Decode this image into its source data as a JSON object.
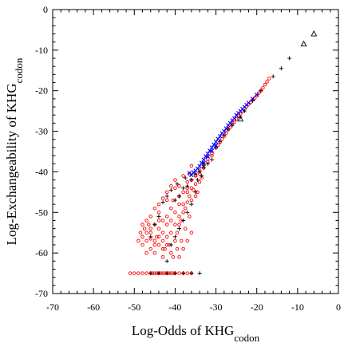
{
  "chart_data": {
    "type": "scatter",
    "xlabel": "Log-Odds of KHG",
    "xlabel_sub": "codon",
    "ylabel": "Log-Exchangeability of KHG",
    "ylabel_sub": "codon",
    "xlim": [
      -70,
      0
    ],
    "ylim": [
      -70,
      0
    ],
    "x_ticks": [
      -70,
      -60,
      -50,
      -40,
      -30,
      -20,
      -10,
      0
    ],
    "y_ticks": [
      0,
      -10,
      -20,
      -30,
      -40,
      -50,
      -60,
      -70
    ],
    "x_tick_labels": [
      "-70",
      "-60",
      "-50",
      "-40",
      "-30",
      "-20",
      "-10",
      "0"
    ],
    "y_tick_labels": [
      "0",
      "-10",
      "-20",
      "-30",
      "-40",
      "-50",
      "-60",
      "-70"
    ],
    "grid": false,
    "legend": "none",
    "series_styles": [
      {
        "marker": "circle",
        "color": "#ff0000"
      },
      {
        "marker": "plus",
        "color": "#000000"
      },
      {
        "marker": "x",
        "color": "#0000ff"
      },
      {
        "marker": "triangle",
        "color": "#000000"
      }
    ],
    "series": [
      {
        "marker": "circle",
        "points": [
          [
            -17,
            -17
          ],
          [
            -17.5,
            -17.8
          ],
          [
            -18,
            -18.5
          ],
          [
            -18.5,
            -19.3
          ],
          [
            -19,
            -20
          ],
          [
            -19.5,
            -20.6
          ],
          [
            -20,
            -21.2
          ],
          [
            -20.5,
            -21.8
          ],
          [
            -21,
            -22.2
          ],
          [
            -21.5,
            -22.8
          ],
          [
            -22,
            -23.3
          ],
          [
            -22.5,
            -23.9
          ],
          [
            -23,
            -24.5
          ],
          [
            -23.5,
            -25.1
          ],
          [
            -24,
            -25.8
          ],
          [
            -24.5,
            -26.3
          ],
          [
            -25,
            -27
          ],
          [
            -25.5,
            -27.7
          ],
          [
            -26,
            -28.3
          ],
          [
            -26.5,
            -29
          ],
          [
            -27,
            -29.6
          ],
          [
            -27.5,
            -30.4
          ],
          [
            -28,
            -31.2
          ],
          [
            -28.5,
            -31.9
          ],
          [
            -29,
            -32.7
          ],
          [
            -29.5,
            -33.4
          ],
          [
            -30,
            -34.1
          ],
          [
            -31,
            -35.5
          ],
          [
            -32,
            -36.8
          ],
          [
            -33,
            -38
          ],
          [
            -34,
            -39.6
          ],
          [
            -35,
            -40.9
          ],
          [
            -31,
            -36
          ],
          [
            -32,
            -37.5
          ],
          [
            -33,
            -39
          ],
          [
            -33.5,
            -41.5
          ],
          [
            -34,
            -42.5
          ],
          [
            -35,
            -43
          ],
          [
            -35.5,
            -44.5
          ],
          [
            -36,
            -42
          ],
          [
            -36.5,
            -46
          ],
          [
            -37,
            -44
          ],
          [
            -37,
            -47.5
          ],
          [
            -37.5,
            -49
          ],
          [
            -38,
            -45
          ],
          [
            -38,
            -50
          ],
          [
            -38.5,
            -52
          ],
          [
            -39,
            -46
          ],
          [
            -39,
            -48
          ],
          [
            -39,
            -53
          ],
          [
            -39.5,
            -55
          ],
          [
            -40,
            -44
          ],
          [
            -40,
            -50
          ],
          [
            -40,
            -57
          ],
          [
            -40.5,
            -47
          ],
          [
            -41,
            -52
          ],
          [
            -41,
            -55
          ],
          [
            -41.5,
            -58
          ],
          [
            -42,
            -47
          ],
          [
            -42,
            -51
          ],
          [
            -42,
            -56
          ],
          [
            -42.5,
            -59
          ],
          [
            -43,
            -52
          ],
          [
            -43,
            -55
          ],
          [
            -43,
            -61
          ],
          [
            -44,
            -50
          ],
          [
            -44,
            -54
          ],
          [
            -44,
            -58
          ],
          [
            -44.5,
            -56
          ],
          [
            -45,
            -53
          ],
          [
            -45,
            -57
          ],
          [
            -45,
            -60
          ],
          [
            -46,
            -55
          ],
          [
            -46,
            -59
          ],
          [
            -46.5,
            -53
          ],
          [
            -47,
            -57
          ],
          [
            -47,
            -60
          ],
          [
            -48,
            -58
          ],
          [
            -48.5,
            -55
          ],
          [
            -49,
            -57
          ],
          [
            -36,
            -47
          ],
          [
            -35,
            -46
          ],
          [
            -34.5,
            -45
          ],
          [
            -36.5,
            -51
          ],
          [
            -37.5,
            -54
          ],
          [
            -38.5,
            -57
          ],
          [
            -39.5,
            -59
          ],
          [
            -40.5,
            -61
          ],
          [
            -36,
            -38.5
          ],
          [
            -36.5,
            -40.5
          ],
          [
            -37,
            -42.5
          ],
          [
            -38,
            -41
          ],
          [
            -39,
            -43.5
          ],
          [
            -40,
            -42
          ],
          [
            -41,
            -43.5
          ],
          [
            -42,
            -45
          ],
          [
            -43,
            -46.5
          ],
          [
            -44,
            -48
          ],
          [
            -45,
            -49
          ],
          [
            -46,
            -51
          ],
          [
            -47,
            -52
          ],
          [
            -47.5,
            -54
          ],
          [
            -48,
            -56
          ],
          [
            -44,
            -52
          ],
          [
            -43,
            -57
          ],
          [
            -42,
            -53
          ],
          [
            -41,
            -49
          ],
          [
            -40,
            -53
          ],
          [
            -39,
            -51
          ],
          [
            -38,
            -48
          ],
          [
            -37,
            -45
          ],
          [
            -36,
            -44
          ],
          [
            -35,
            -41
          ],
          [
            -34,
            -40.5
          ],
          [
            -36,
            -55
          ],
          [
            -37,
            -57
          ],
          [
            -38,
            -59
          ],
          [
            -39,
            -61
          ],
          [
            -41,
            -60
          ],
          [
            -43,
            -59
          ],
          [
            -45,
            -58
          ],
          [
            -46,
            -56.5
          ],
          [
            -47,
            -55
          ],
          [
            -48,
            -53
          ],
          [
            -46,
            -54
          ],
          [
            -44,
            -56
          ],
          [
            -42,
            -58
          ],
          [
            -51,
            -65
          ],
          [
            -50,
            -65
          ],
          [
            -49,
            -65
          ],
          [
            -48,
            -65
          ],
          [
            -47,
            -65
          ],
          [
            -46,
            -65
          ],
          [
            -45.5,
            -65
          ],
          [
            -45,
            -65
          ],
          [
            -44.5,
            -65
          ],
          [
            -44,
            -65
          ],
          [
            -43.5,
            -65
          ],
          [
            -43,
            -65
          ],
          [
            -42.5,
            -65
          ],
          [
            -42,
            -65
          ],
          [
            -41.5,
            -65
          ],
          [
            -41,
            -65
          ],
          [
            -40.5,
            -65
          ],
          [
            -40,
            -65
          ],
          [
            -39,
            -65
          ],
          [
            -38,
            -65
          ],
          [
            -37,
            -65
          ],
          [
            -36,
            -65
          ]
        ]
      },
      {
        "marker": "plus",
        "points": [
          [
            -12,
            -12
          ],
          [
            -14,
            -14.5
          ],
          [
            -16,
            -16.5
          ],
          [
            -19,
            -20
          ],
          [
            -21,
            -22.5
          ],
          [
            -23,
            -25
          ],
          [
            -24,
            -26.5
          ],
          [
            -26,
            -28.5
          ],
          [
            -27,
            -29.5
          ],
          [
            -28,
            -31
          ],
          [
            -29,
            -32.5
          ],
          [
            -30,
            -34
          ],
          [
            -31,
            -37
          ],
          [
            -32,
            -38
          ],
          [
            -33,
            -39
          ],
          [
            -34,
            -40
          ],
          [
            -35,
            -40.5
          ],
          [
            -36,
            -42
          ],
          [
            -37,
            -43.5
          ],
          [
            -38,
            -44
          ],
          [
            -39,
            -46
          ],
          [
            -40,
            -47
          ],
          [
            -41,
            -44.5
          ],
          [
            -42,
            -46
          ],
          [
            -43,
            -47.5
          ],
          [
            -44,
            -51
          ],
          [
            -45,
            -53
          ],
          [
            -46,
            -56
          ],
          [
            -37,
            -50
          ],
          [
            -38,
            -52
          ],
          [
            -39,
            -54
          ],
          [
            -40,
            -56
          ],
          [
            -41,
            -58
          ],
          [
            -42,
            -62
          ],
          [
            -35,
            -45
          ],
          [
            -36,
            -48
          ],
          [
            -34.5,
            -42
          ],
          [
            -33.5,
            -41
          ],
          [
            -33,
            -38.5
          ],
          [
            -46,
            -65
          ],
          [
            -44,
            -65
          ],
          [
            -42,
            -65
          ],
          [
            -40,
            -65
          ],
          [
            -38,
            -65
          ],
          [
            -36,
            -65
          ],
          [
            -34,
            -65
          ],
          [
            -39.5,
            -43
          ],
          [
            -37.5,
            -41.5
          ]
        ]
      },
      {
        "marker": "x",
        "points": [
          [
            -20,
            -21
          ],
          [
            -21,
            -22
          ],
          [
            -22,
            -23
          ],
          [
            -22.5,
            -23.5
          ],
          [
            -23,
            -24
          ],
          [
            -23.5,
            -24.5
          ],
          [
            -24,
            -25
          ],
          [
            -24.5,
            -25.5
          ],
          [
            -25,
            -26
          ],
          [
            -25.5,
            -26.8
          ],
          [
            -26,
            -27.3
          ],
          [
            -26.5,
            -28
          ],
          [
            -27,
            -28.5
          ],
          [
            -27.5,
            -29.3
          ],
          [
            -28,
            -30
          ],
          [
            -28.5,
            -30.5
          ],
          [
            -29,
            -31.2
          ],
          [
            -29.5,
            -31.9
          ],
          [
            -30,
            -32.6
          ],
          [
            -30.5,
            -33.3
          ],
          [
            -31,
            -34
          ],
          [
            -31.5,
            -34.8
          ],
          [
            -32,
            -35.5
          ],
          [
            -32.5,
            -36.2
          ],
          [
            -33,
            -37
          ],
          [
            -33.5,
            -37.8
          ],
          [
            -34,
            -38.6
          ],
          [
            -34.5,
            -39.2
          ],
          [
            -35,
            -39.7
          ],
          [
            -35.5,
            -40.1
          ],
          [
            -36,
            -40.8
          ],
          [
            -36.5,
            -40.3
          ],
          [
            -30,
            -33.5
          ],
          [
            -31,
            -34.8
          ],
          [
            -32,
            -36.2
          ],
          [
            -33,
            -37.8
          ]
        ]
      },
      {
        "marker": "triangle",
        "points": [
          [
            -6,
            -6
          ],
          [
            -8.5,
            -8.5
          ],
          [
            -24,
            -27
          ]
        ]
      }
    ]
  }
}
